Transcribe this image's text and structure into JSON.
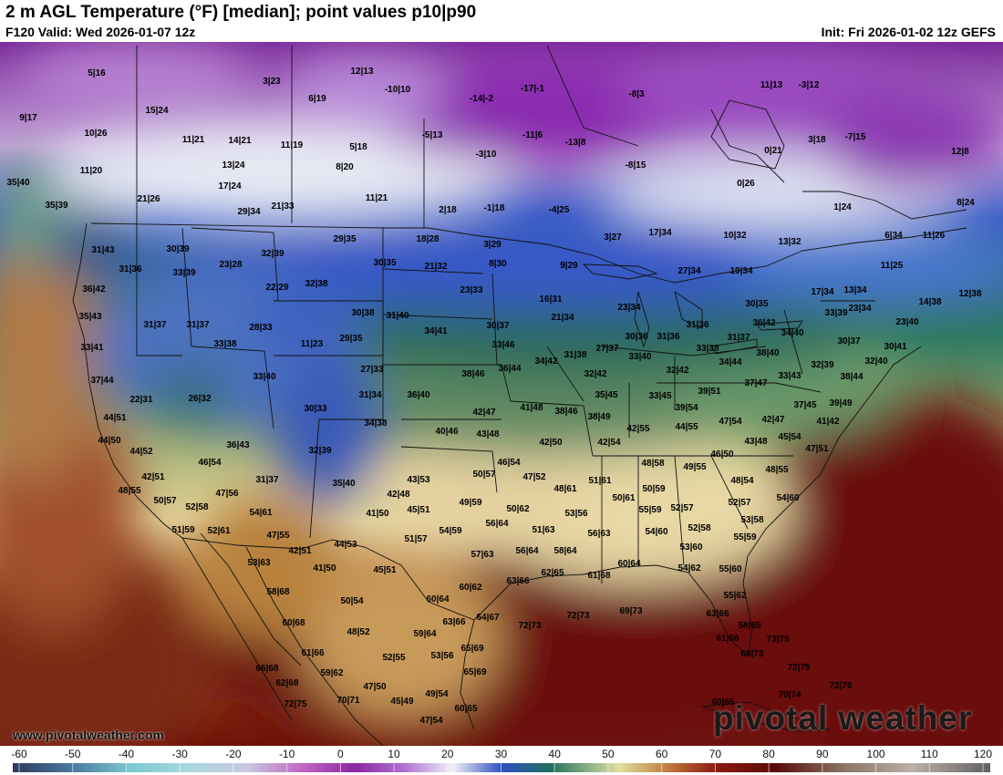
{
  "header": {
    "title": "2 m AGL Temperature (°F) [median]; point values p10|p90",
    "valid": "F120 Valid: Wed 2026-01-07 12z",
    "init": "Init: Fri 2026-01-02 12z GEFS"
  },
  "branding": {
    "website": "www.pivotalweather.com",
    "logo": "pivotal weather"
  },
  "colorbar": {
    "ticks": [
      "-60",
      "-50",
      "-40",
      "-30",
      "-20",
      "-10",
      "0",
      "10",
      "20",
      "30",
      "40",
      "50",
      "60",
      "70",
      "80",
      "90",
      "100",
      "110",
      "120"
    ],
    "range": [
      -60,
      125
    ],
    "colors": [
      "#3a4a6a",
      "#5a7a9a",
      "#6fb0b8",
      "#8fd0d8",
      "#c0c0dc",
      "#c070c8",
      "#9030a0",
      "#b070d0",
      "#e8e8f4",
      "#3a58c8",
      "#2a7a5a",
      "#d8d8a0",
      "#c08048",
      "#8a1a12",
      "#5a0a06",
      "#8a7060",
      "#b8a8a0",
      "#808080"
    ]
  },
  "points": [
    [
      "5|16",
      106,
      83
    ],
    [
      "3|23",
      298,
      92
    ],
    [
      "12|13",
      397,
      81
    ],
    [
      "9|17",
      31,
      132
    ],
    [
      "15|24",
      172,
      124
    ],
    [
      "10|26",
      105,
      149
    ],
    [
      "11|21",
      212,
      156
    ],
    [
      "14|21",
      263,
      157
    ],
    [
      "11|19",
      320,
      162
    ],
    [
      "5|18",
      393,
      164
    ],
    [
      "6|19",
      348,
      111
    ],
    [
      "-10|10",
      436,
      101
    ],
    [
      "-14|-2",
      528,
      111
    ],
    [
      "-17|-1",
      584,
      100
    ],
    [
      "-8|3",
      698,
      106
    ],
    [
      "11|20",
      100,
      190
    ],
    [
      "13|24",
      256,
      184
    ],
    [
      "8|20",
      378,
      186
    ],
    [
      "-5|13",
      474,
      151
    ],
    [
      "-11|6",
      584,
      151
    ],
    [
      "-13|8",
      631,
      159
    ],
    [
      "-3|10",
      533,
      172
    ],
    [
      "-8|15",
      697,
      184
    ],
    [
      "17|24",
      252,
      207
    ],
    [
      "21|26",
      163,
      221
    ],
    [
      "11|21",
      413,
      220
    ],
    [
      "0|26",
      818,
      204
    ],
    [
      "35|40",
      20,
      203
    ],
    [
      "35|39",
      62,
      228
    ],
    [
      "29|34",
      273,
      235
    ],
    [
      "21|33",
      310,
      229
    ],
    [
      "2|18",
      491,
      233
    ],
    [
      "-1|18",
      542,
      231
    ],
    [
      "-4|25",
      613,
      233
    ],
    [
      "1|24",
      924,
      230
    ],
    [
      "8|24",
      1059,
      225
    ],
    [
      "11|13",
      846,
      96
    ],
    [
      "-3|12",
      887,
      96
    ],
    [
      "3|18",
      896,
      156
    ],
    [
      "-7|15",
      938,
      153
    ],
    [
      "12|8",
      1053,
      169
    ],
    [
      "0|21",
      848,
      168
    ],
    [
      "30|39",
      195,
      276
    ],
    [
      "23|28",
      253,
      293
    ],
    [
      "32|39",
      299,
      281
    ],
    [
      "29|35",
      378,
      265
    ],
    [
      "18|28",
      469,
      265
    ],
    [
      "3|29",
      540,
      271
    ],
    [
      "17|34",
      724,
      258
    ],
    [
      "10|32",
      806,
      261
    ],
    [
      "13|32",
      866,
      268
    ],
    [
      "6|34",
      980,
      261
    ],
    [
      "11|26",
      1024,
      261
    ],
    [
      "3|27",
      672,
      263
    ],
    [
      "31|43",
      113,
      277
    ],
    [
      "31|36",
      143,
      298
    ],
    [
      "33|39",
      202,
      302
    ],
    [
      "22|29",
      304,
      318
    ],
    [
      "32|38",
      347,
      314
    ],
    [
      "30|35",
      422,
      291
    ],
    [
      "21|32",
      478,
      295
    ],
    [
      "8|30",
      546,
      292
    ],
    [
      "9|29",
      624,
      294
    ],
    [
      "27|34",
      756,
      300
    ],
    [
      "19|34",
      813,
      300
    ],
    [
      "11|25",
      978,
      294
    ],
    [
      "36|42",
      103,
      320
    ],
    [
      "23|33",
      517,
      321
    ],
    [
      "16|31",
      604,
      331
    ],
    [
      "17|34",
      902,
      323
    ],
    [
      "13|34",
      938,
      321
    ],
    [
      "14|38",
      1020,
      334
    ],
    [
      "12|38",
      1064,
      325
    ],
    [
      "35|43",
      99,
      350
    ],
    [
      "31|37",
      170,
      359
    ],
    [
      "31|37",
      217,
      359
    ],
    [
      "28|33",
      286,
      362
    ],
    [
      "30|38",
      398,
      346
    ],
    [
      "31|40",
      436,
      349
    ],
    [
      "21|34",
      617,
      351
    ],
    [
      "23|34",
      690,
      340
    ],
    [
      "30|35",
      830,
      336
    ],
    [
      "23|34",
      943,
      341
    ],
    [
      "33|39",
      917,
      346
    ],
    [
      "36|42",
      838,
      357
    ],
    [
      "23|40",
      995,
      356
    ],
    [
      "33|41",
      101,
      384
    ],
    [
      "33|38",
      247,
      380
    ],
    [
      "11|23",
      342,
      380
    ],
    [
      "29|35",
      385,
      374
    ],
    [
      "34|41",
      478,
      366
    ],
    [
      "30|37",
      546,
      360
    ],
    [
      "31|36",
      765,
      359
    ],
    [
      "31|37",
      810,
      373
    ],
    [
      "34|40",
      869,
      368
    ],
    [
      "30|37",
      931,
      377
    ],
    [
      "30|41",
      982,
      383
    ],
    [
      "33|46",
      552,
      381
    ],
    [
      "31|38",
      631,
      392
    ],
    [
      "27|37",
      666,
      385
    ],
    [
      "30|36",
      698,
      372
    ],
    [
      "31|36",
      733,
      372
    ],
    [
      "33|38",
      776,
      385
    ],
    [
      "38|40",
      842,
      390
    ],
    [
      "32|40",
      961,
      399
    ],
    [
      "37|44",
      112,
      420
    ],
    [
      "33|40",
      290,
      416
    ],
    [
      "27|33",
      408,
      408
    ],
    [
      "38|46",
      519,
      413
    ],
    [
      "36|44",
      559,
      407
    ],
    [
      "34|42",
      599,
      399
    ],
    [
      "32|42",
      653,
      413
    ],
    [
      "33|40",
      702,
      394
    ],
    [
      "32|42",
      743,
      409
    ],
    [
      "34|44",
      801,
      400
    ],
    [
      "33|43",
      866,
      415
    ],
    [
      "32|39",
      902,
      403
    ],
    [
      "38|44",
      934,
      416
    ],
    [
      "22|31",
      155,
      441
    ],
    [
      "26|32",
      219,
      440
    ],
    [
      "31|34",
      406,
      436
    ],
    [
      "36|40",
      459,
      436
    ],
    [
      "35|45",
      665,
      436
    ],
    [
      "33|45",
      724,
      437
    ],
    [
      "39|51",
      778,
      432
    ],
    [
      "37|47",
      829,
      423
    ],
    [
      "37|45",
      883,
      447
    ],
    [
      "39|49",
      922,
      445
    ],
    [
      "30|33",
      346,
      451
    ],
    [
      "34|38",
      412,
      467
    ],
    [
      "42|47",
      531,
      455
    ],
    [
      "41|48",
      583,
      450
    ],
    [
      "38|46",
      621,
      454
    ],
    [
      "38|49",
      657,
      460
    ],
    [
      "39|54",
      753,
      450
    ],
    [
      "41|42",
      908,
      465
    ],
    [
      "44|51",
      126,
      461
    ],
    [
      "40|46",
      490,
      476
    ],
    [
      "43|48",
      535,
      479
    ],
    [
      "42|55",
      700,
      473
    ],
    [
      "44|55",
      753,
      471
    ],
    [
      "47|54",
      801,
      465
    ],
    [
      "42|47",
      848,
      463
    ],
    [
      "45|54",
      866,
      482
    ],
    [
      "44|50",
      120,
      486
    ],
    [
      "36|43",
      261,
      491
    ],
    [
      "42|50",
      604,
      488
    ],
    [
      "42|54",
      668,
      488
    ],
    [
      "43|48",
      829,
      487
    ],
    [
      "47|51",
      896,
      495
    ],
    [
      "44|52",
      155,
      498
    ],
    [
      "32|39",
      351,
      497
    ],
    [
      "46|50",
      792,
      501
    ],
    [
      "46|54",
      230,
      510
    ],
    [
      "46|54",
      558,
      510
    ],
    [
      "48|58",
      716,
      511
    ],
    [
      "49|55",
      762,
      515
    ],
    [
      "48|55",
      852,
      518
    ],
    [
      "42|51",
      168,
      526
    ],
    [
      "31|37",
      293,
      529
    ],
    [
      "50|57",
      531,
      523
    ],
    [
      "47|52",
      586,
      526
    ],
    [
      "43|53",
      459,
      529
    ],
    [
      "51|61",
      658,
      530
    ],
    [
      "35|40",
      377,
      533
    ],
    [
      "48|54",
      814,
      530
    ],
    [
      "48|55",
      142,
      541
    ],
    [
      "47|56",
      249,
      544
    ],
    [
      "42|48",
      437,
      545
    ],
    [
      "48|61",
      620,
      539
    ],
    [
      "50|59",
      717,
      539
    ],
    [
      "50|61",
      684,
      549
    ],
    [
      "54|60",
      864,
      549
    ],
    [
      "50|57",
      181,
      552
    ],
    [
      "52|58",
      216,
      559
    ],
    [
      "49|59",
      516,
      554
    ],
    [
      "50|62",
      568,
      561
    ],
    [
      "52|57",
      811,
      554
    ],
    [
      "55|59",
      713,
      562
    ],
    [
      "52|57",
      748,
      560
    ],
    [
      "45|51",
      459,
      562
    ],
    [
      "41|50",
      414,
      566
    ],
    [
      "54|61",
      286,
      565
    ],
    [
      "53|56",
      632,
      566
    ],
    [
      "56|64",
      545,
      577
    ],
    [
      "53|58",
      825,
      573
    ],
    [
      "51|59",
      201,
      584
    ],
    [
      "52|61",
      240,
      585
    ],
    [
      "47|55",
      305,
      590
    ],
    [
      "54|59",
      494,
      585
    ],
    [
      "51|63",
      596,
      584
    ],
    [
      "56|63",
      657,
      588
    ],
    [
      "54|60",
      720,
      586
    ],
    [
      "52|58",
      767,
      582
    ],
    [
      "55|59",
      817,
      592
    ],
    [
      "51|57",
      456,
      594
    ],
    [
      "44|53",
      379,
      600
    ],
    [
      "42|51",
      329,
      607
    ],
    [
      "57|63",
      529,
      611
    ],
    [
      "56|64",
      578,
      607
    ],
    [
      "58|64",
      620,
      607
    ],
    [
      "53|60",
      758,
      603
    ],
    [
      "53|63",
      284,
      620
    ],
    [
      "41|50",
      356,
      626
    ],
    [
      "45|51",
      422,
      628
    ],
    [
      "62|65",
      606,
      631
    ],
    [
      "63|66",
      568,
      640
    ],
    [
      "61|68",
      657,
      634
    ],
    [
      "60|64",
      690,
      621
    ],
    [
      "54|62",
      756,
      626
    ],
    [
      "55|60",
      801,
      627
    ],
    [
      "58|68",
      305,
      652
    ],
    [
      "60|62",
      516,
      647
    ],
    [
      "60|64",
      480,
      660
    ],
    [
      "55|62",
      806,
      656
    ],
    [
      "50|54",
      386,
      662
    ],
    [
      "69|73",
      692,
      673
    ],
    [
      "72|73",
      634,
      678
    ],
    [
      "72|73",
      581,
      689
    ],
    [
      "63|66",
      787,
      676
    ],
    [
      "60|68",
      322,
      686
    ],
    [
      "63|66",
      498,
      685
    ],
    [
      "64|67",
      535,
      680
    ],
    [
      "58|65",
      822,
      689
    ],
    [
      "48|52",
      393,
      696
    ],
    [
      "59|64",
      466,
      698
    ],
    [
      "61|66",
      798,
      703
    ],
    [
      "73|75",
      853,
      704
    ],
    [
      "68|73",
      825,
      720
    ],
    [
      "61|66",
      343,
      719
    ],
    [
      "65|69",
      518,
      714
    ],
    [
      "52|55",
      432,
      724
    ],
    [
      "53|56",
      485,
      722
    ],
    [
      "66|68",
      293,
      736
    ],
    [
      "59|62",
      364,
      741
    ],
    [
      "65|69",
      521,
      740
    ],
    [
      "72|75",
      876,
      735
    ],
    [
      "47|50",
      411,
      756
    ],
    [
      "49|54",
      479,
      764
    ],
    [
      "62|68",
      315,
      752
    ],
    [
      "72|76",
      922,
      755
    ],
    [
      "45|49",
      441,
      772
    ],
    [
      "70|71",
      382,
      771
    ],
    [
      "60|65",
      511,
      780
    ],
    [
      "72|75",
      324,
      775
    ],
    [
      "47|54",
      473,
      793
    ],
    [
      "60|65",
      793,
      773
    ],
    [
      "70|74",
      866,
      765
    ]
  ]
}
